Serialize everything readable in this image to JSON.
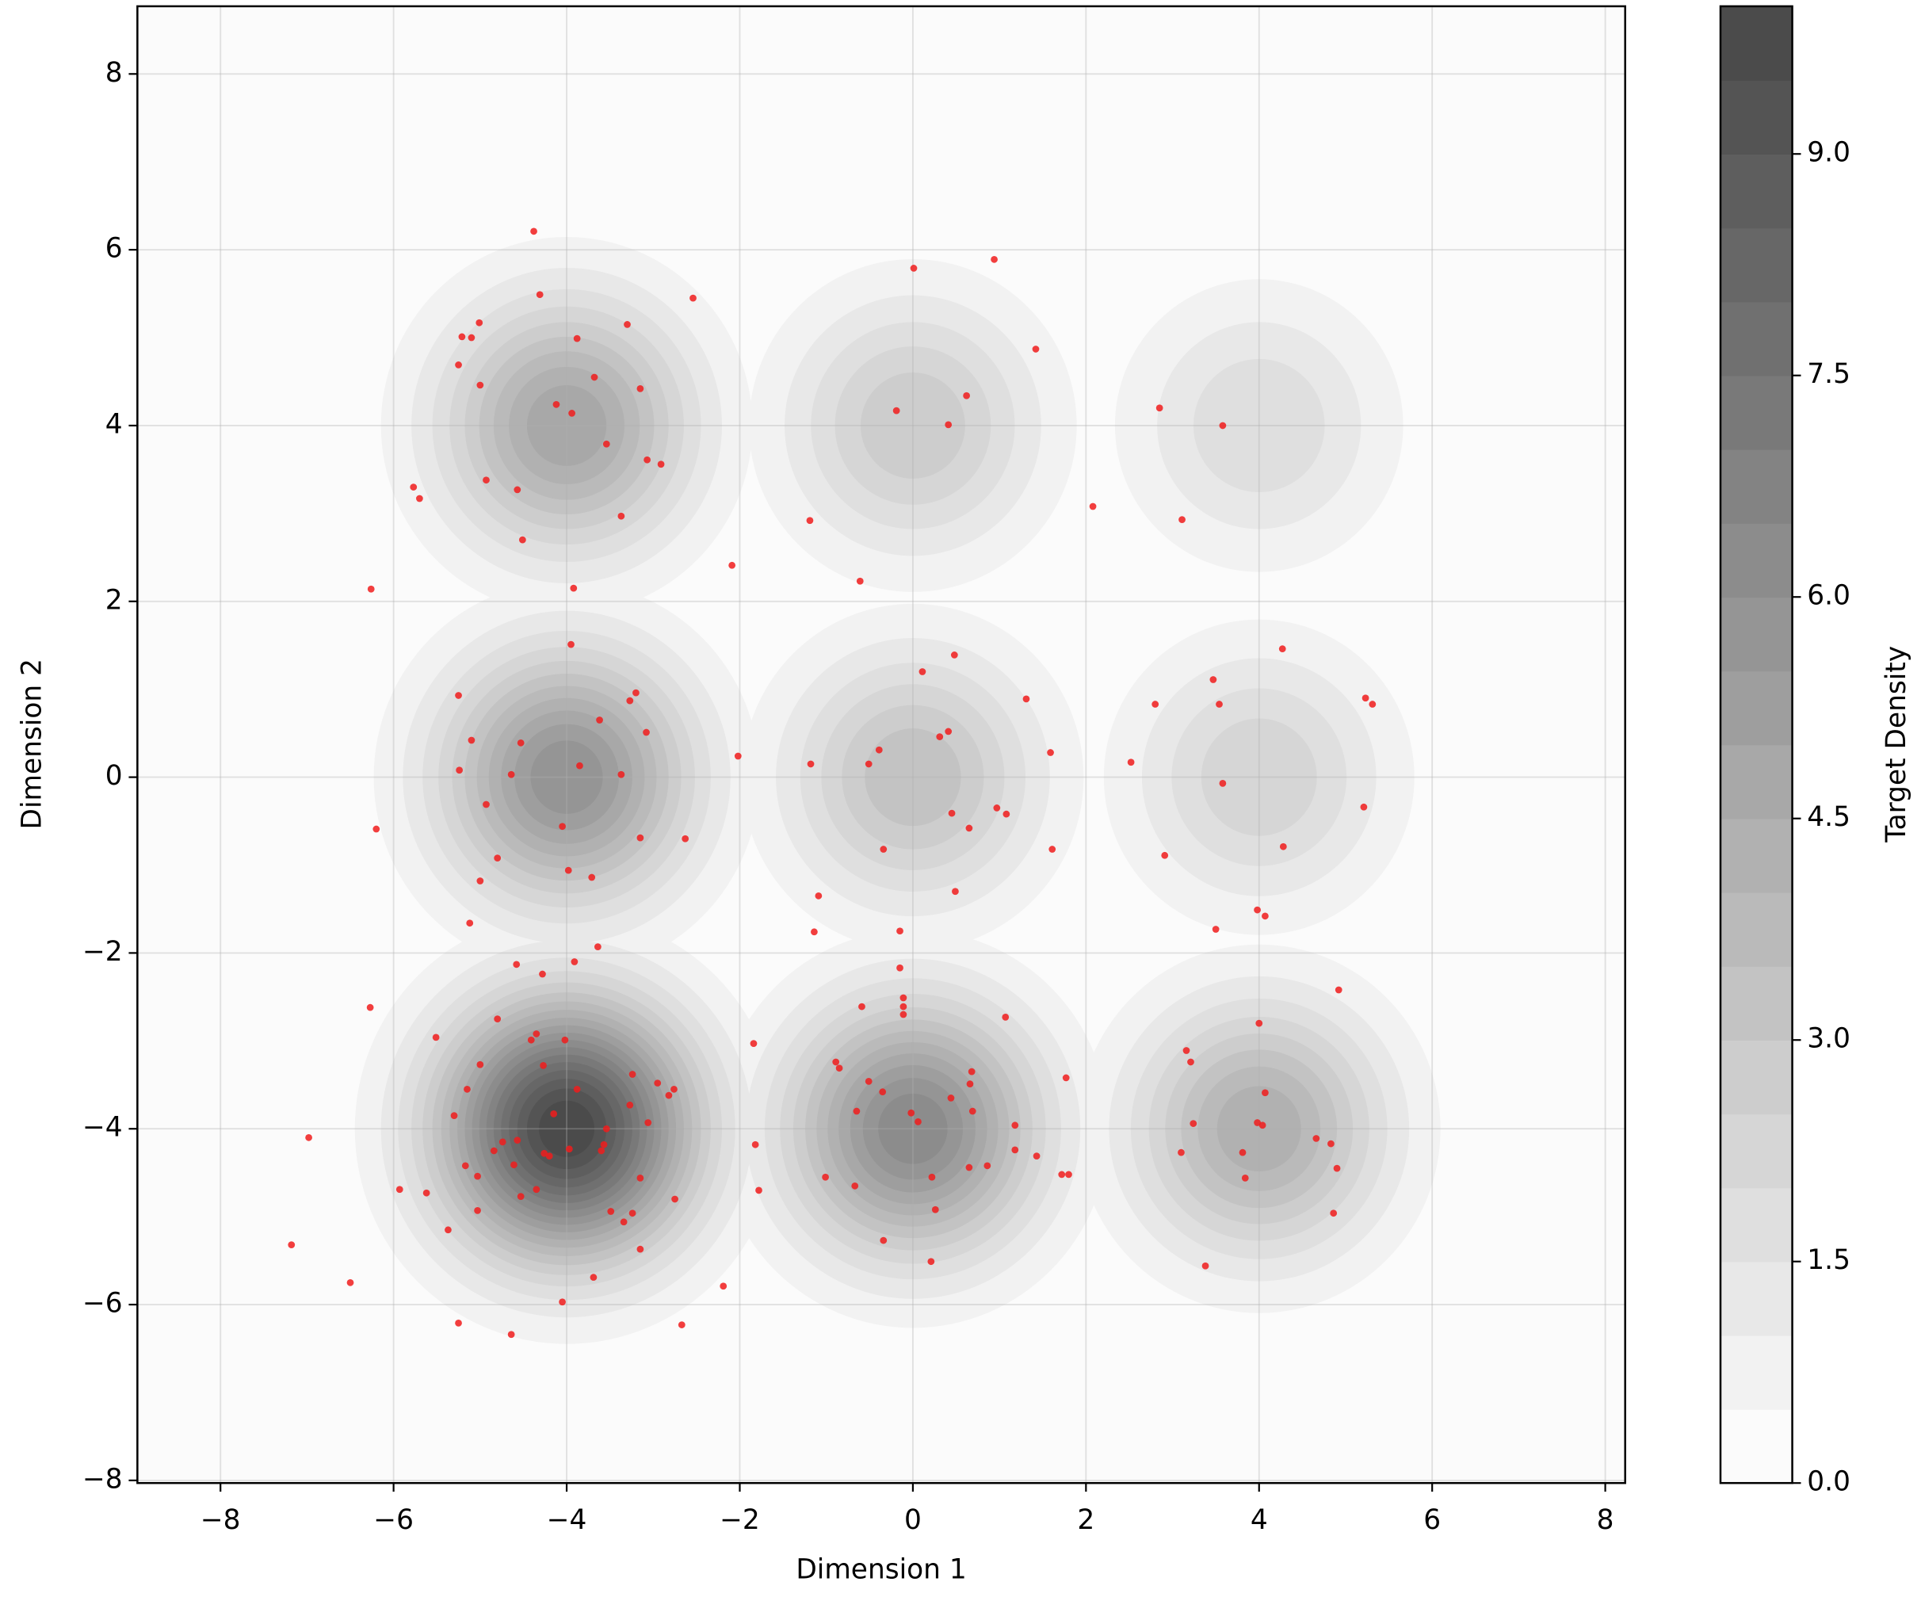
{
  "chart_data": {
    "type": "contour",
    "xlabel": "Dimension 1",
    "ylabel": "Dimension 2",
    "colorbar_label": "Target Density",
    "xlim": [
      -8.96,
      8.23
    ],
    "ylim": [
      -8.03,
      8.77
    ],
    "xticks": [
      {
        "value": -8,
        "label": "−8"
      },
      {
        "value": -6,
        "label": "−6"
      },
      {
        "value": -4,
        "label": "−4"
      },
      {
        "value": -2,
        "label": "−2"
      },
      0,
      2,
      4,
      6,
      8
    ],
    "yticks": [
      {
        "value": -8,
        "label": "−8"
      },
      {
        "value": -6,
        "label": "−6"
      },
      {
        "value": -4,
        "label": "−4"
      },
      {
        "value": -2,
        "label": "−2"
      },
      0,
      2,
      4,
      6,
      8
    ],
    "grid": true,
    "density": {
      "centers_x": [
        -4,
        0,
        4,
        -4,
        0,
        4,
        -4,
        0,
        4
      ],
      "centers_y": [
        -4,
        -4,
        -4,
        0,
        0,
        0,
        4,
        4,
        4
      ],
      "peaks": [
        10,
        6.5,
        4.5,
        6,
        3.5,
        2.5,
        5,
        3,
        2
      ],
      "sigma": 1.0,
      "levels": [
        0,
        0.5,
        1,
        1.5,
        2,
        2.5,
        3,
        3.5,
        4,
        4.5,
        5,
        5.5,
        6,
        6.5,
        7,
        7.5,
        8,
        8.5,
        9,
        9.5,
        10
      ],
      "cmap": [
        "#fbfbfb",
        "#4b4b4b"
      ]
    },
    "clim": [
      0,
      10
    ],
    "cticks": [
      {
        "value": 0,
        "label": "0.0"
      },
      1.5,
      {
        "value": 3,
        "label": "3.0"
      },
      4.5,
      {
        "value": 6,
        "label": "6.0"
      },
      7.5,
      {
        "value": 9,
        "label": "9.0"
      }
    ],
    "point_color": "#f01c1c",
    "x": [
      -4.38,
      -4.31,
      -5.21,
      -5.1,
      -5.01,
      -5.25,
      -5.0,
      -3.88,
      -3.3,
      -3.68,
      -3.15,
      -4.12,
      -3.94,
      -3.54,
      -3.07,
      -2.91,
      -2.54,
      -4.93,
      -4.57,
      -5.77,
      -5.7,
      -3.37,
      -4.51,
      -3.92,
      -6.26,
      0.01,
      0.94,
      1.42,
      -0.19,
      0.62,
      0.41,
      -1.19,
      -2.09,
      -0.61,
      2.08,
      2.85,
      3.58,
      3.11,
      -3.95,
      -5.25,
      -3.2,
      -3.27,
      -3.62,
      -5.1,
      -4.53,
      -3.08,
      -5.24,
      -4.64,
      -3.85,
      -3.37,
      -4.93,
      -4.05,
      -6.2,
      -3.15,
      -2.63,
      -4.8,
      -3.98,
      -3.71,
      -5.0,
      -5.12,
      -3.64,
      -3.91,
      -4.58,
      -4.28,
      -6.27,
      0.48,
      0.11,
      1.31,
      0.41,
      0.31,
      -0.39,
      -0.51,
      -1.18,
      -2.02,
      1.59,
      0.97,
      1.08,
      0.45,
      0.65,
      -0.34,
      1.61,
      0.49,
      -1.09,
      -1.14,
      -0.15,
      4.27,
      3.47,
      2.8,
      3.54,
      5.23,
      5.31,
      2.52,
      3.58,
      5.21,
      4.28,
      2.91,
      3.98,
      4.07,
      3.5,
      4.92,
      -5.51,
      -4.8,
      -4.35,
      -4.41,
      -4.02,
      -5.0,
      -4.27,
      -3.24,
      -5.15,
      -3.88,
      -2.95,
      -2.76,
      -2.82,
      -3.27,
      -5.3,
      -4.15,
      -3.54,
      -3.06,
      -6.98,
      -4.74,
      -4.84,
      -4.57,
      -3.57,
      -3.6,
      -3.97,
      -4.26,
      -4.2,
      -5.17,
      -4.61,
      -3.15,
      -4.35,
      -5.03,
      -5.93,
      -5.62,
      -4.53,
      -2.75,
      -3.49,
      -3.24,
      -5.03,
      -3.34,
      -5.37,
      -3.15,
      -7.18,
      -6.5,
      -3.69,
      -4.05,
      -2.19,
      -5.25,
      -4.64,
      -2.67,
      -0.15,
      -0.11,
      -0.11,
      -0.11,
      -0.59,
      -1.84,
      1.07,
      -0.89,
      -0.85,
      -0.51,
      0.68,
      0.66,
      -0.35,
      0.44,
      -0.65,
      0.69,
      -0.02,
      0.06,
      1.77,
      1.18,
      -1.82,
      1.18,
      1.43,
      0.86,
      0.65,
      1.72,
      1.8,
      -1.01,
      0.22,
      -1.78,
      -0.67,
      0.26,
      -0.34,
      0.21,
      4.0,
      3.16,
      3.21,
      4.07,
      3.24,
      3.98,
      4.04,
      4.66,
      4.83,
      3.1,
      3.81,
      4.9,
      3.84,
      4.86,
      3.38
    ],
    "y": [
      6.21,
      5.49,
      5.01,
      5.0,
      5.17,
      4.69,
      4.46,
      4.99,
      5.15,
      4.55,
      4.42,
      4.24,
      4.14,
      3.79,
      3.61,
      3.56,
      5.45,
      3.38,
      3.27,
      3.3,
      3.17,
      2.97,
      2.7,
      2.15,
      2.14,
      5.79,
      5.89,
      4.87,
      4.17,
      4.34,
      4.01,
      2.92,
      2.41,
      2.23,
      3.08,
      4.2,
      4.0,
      2.93,
      1.51,
      0.93,
      0.96,
      0.87,
      0.65,
      0.42,
      0.39,
      0.51,
      0.08,
      0.03,
      0.13,
      0.03,
      -0.31,
      -0.56,
      -0.59,
      -0.69,
      -0.7,
      -0.92,
      -1.06,
      -1.14,
      -1.18,
      -1.66,
      -1.93,
      -2.1,
      -2.13,
      -2.24,
      -2.62,
      1.39,
      1.2,
      0.89,
      0.52,
      0.46,
      0.31,
      0.15,
      0.15,
      0.24,
      0.28,
      -0.35,
      -0.42,
      -0.41,
      -0.58,
      -0.82,
      -0.82,
      -1.3,
      -1.35,
      -1.76,
      -1.75,
      1.46,
      1.11,
      0.83,
      0.83,
      0.9,
      0.83,
      0.17,
      -0.07,
      -0.34,
      -0.79,
      -0.89,
      -1.51,
      -1.58,
      -1.73,
      -2.42,
      -2.96,
      -2.75,
      -2.92,
      -2.99,
      -2.99,
      -3.27,
      -3.28,
      -3.38,
      -3.55,
      -3.55,
      -3.48,
      -3.55,
      -3.62,
      -3.73,
      -3.85,
      -3.83,
      -4.0,
      -3.93,
      -4.1,
      -4.15,
      -4.25,
      -4.13,
      -4.18,
      -4.25,
      -4.23,
      -4.28,
      -4.31,
      -4.42,
      -4.41,
      -4.56,
      -4.69,
      -4.54,
      -4.69,
      -4.73,
      -4.77,
      -4.8,
      -4.94,
      -4.96,
      -4.93,
      -5.06,
      -5.15,
      -5.37,
      -5.32,
      -5.75,
      -5.69,
      -5.97,
      -5.79,
      -6.21,
      -6.34,
      -6.23,
      -2.17,
      -2.51,
      -2.61,
      -2.7,
      -2.61,
      -3.03,
      -2.73,
      -3.24,
      -3.31,
      -3.46,
      -3.35,
      -3.49,
      -3.58,
      -3.65,
      -3.8,
      -3.8,
      -3.82,
      -3.92,
      -3.42,
      -3.96,
      -4.18,
      -4.24,
      -4.31,
      -4.42,
      -4.44,
      -4.52,
      -4.52,
      -4.55,
      -4.55,
      -4.7,
      -4.65,
      -4.92,
      -5.27,
      -5.51,
      -2.8,
      -3.11,
      -3.24,
      -3.59,
      -3.94,
      -3.93,
      -3.96,
      -4.11,
      -4.17,
      -4.27,
      -4.27,
      -4.45,
      -4.56,
      -4.96,
      -5.56
    ]
  }
}
